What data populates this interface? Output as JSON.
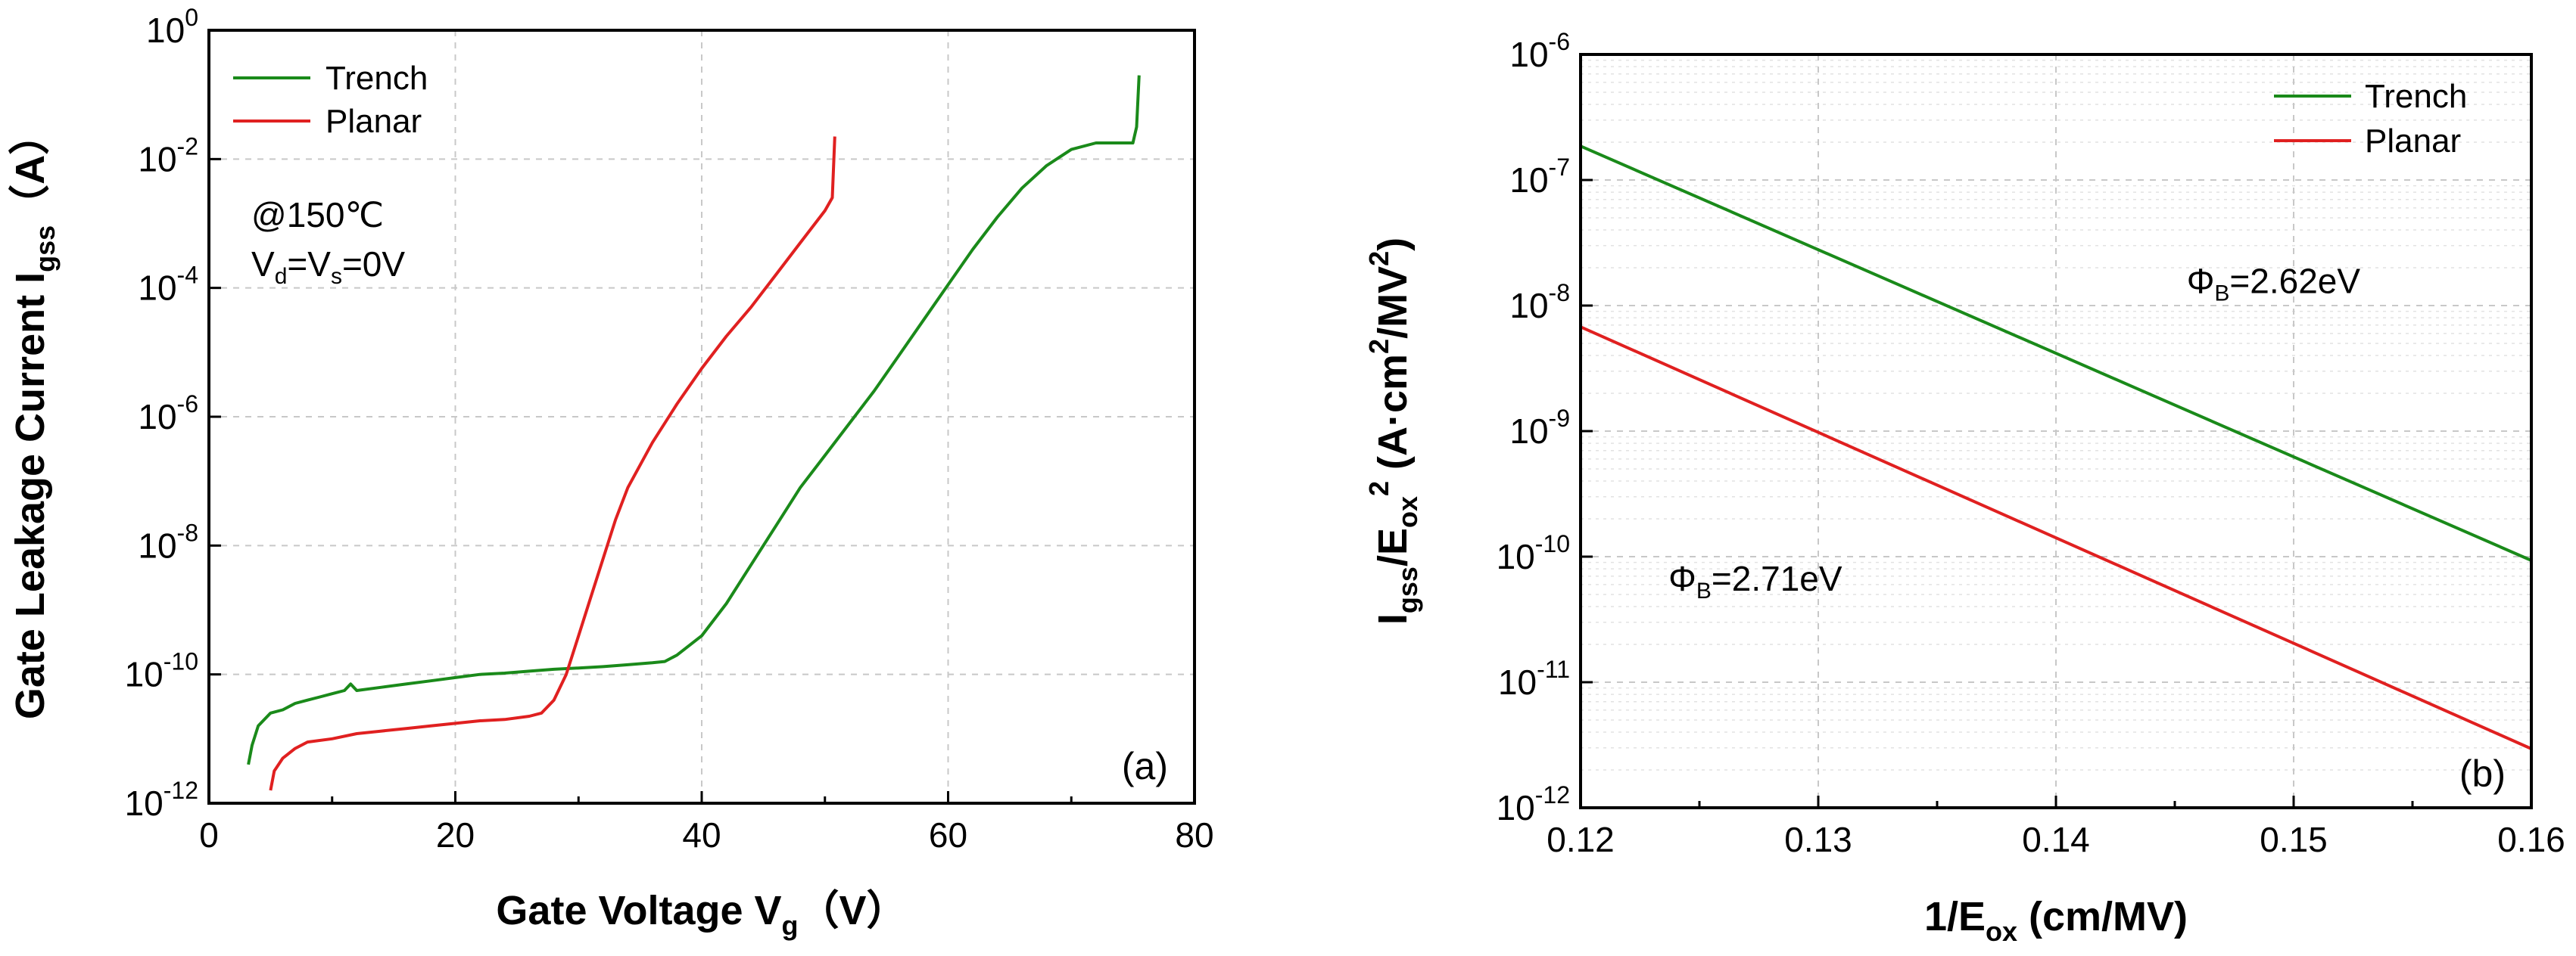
{
  "chart_data": [
    {
      "type": "line",
      "panel_label": "(a)",
      "xlabel": "Gate Voltage V",
      "xlabel_sub": "g",
      "xlabel_unit": "（V）",
      "ylabel": "Gate Leakage Current I",
      "ylabel_sub": "gss",
      "ylabel_unit": "（A）",
      "xlim": [
        0,
        80
      ],
      "x_ticks": [
        "0",
        "20",
        "40",
        "60",
        "80"
      ],
      "ylim_log10": [
        -12,
        0
      ],
      "y_scale": "log",
      "y_tick_exponents": [
        "-12",
        "-10",
        "-8",
        "-6",
        "-4",
        "-2",
        "0"
      ],
      "legend_position": "top-left",
      "annotation_line1": "@150℃",
      "annotation_line2": {
        "v1": "V",
        "v1_sub": "d",
        "eq1": "=",
        "v2": "V",
        "v2_sub": "s",
        "eq2": "=0V"
      },
      "series": [
        {
          "name": "Trench",
          "color": "#1a8a1a",
          "x": [
            3.2,
            3.5,
            4,
            5,
            6,
            7,
            8,
            9,
            10,
            11,
            11.5,
            12,
            14,
            16,
            18,
            20,
            22,
            24,
            26,
            28,
            30,
            32,
            34,
            36,
            37,
            38,
            39,
            40,
            42,
            44,
            46,
            48,
            50,
            52,
            54,
            56,
            58,
            60,
            62,
            64,
            66,
            68,
            70,
            72,
            74,
            75,
            75.3,
            75.5
          ],
          "log10_y": [
            -11.4,
            -11.1,
            -10.8,
            -10.6,
            -10.55,
            -10.45,
            -10.4,
            -10.35,
            -10.3,
            -10.25,
            -10.15,
            -10.25,
            -10.2,
            -10.15,
            -10.1,
            -10.05,
            -10.0,
            -9.98,
            -9.95,
            -9.92,
            -9.9,
            -9.88,
            -9.85,
            -9.82,
            -9.8,
            -9.7,
            -9.55,
            -9.4,
            -8.9,
            -8.3,
            -7.7,
            -7.1,
            -6.6,
            -6.1,
            -5.6,
            -5.05,
            -4.5,
            -3.95,
            -3.4,
            -2.9,
            -2.45,
            -2.1,
            -1.85,
            -1.75,
            -1.75,
            -1.75,
            -1.5,
            -0.7
          ]
        },
        {
          "name": "Planar",
          "color": "#e02020",
          "x": [
            5,
            5.3,
            6,
            7,
            8,
            10,
            12,
            14,
            16,
            18,
            20,
            22,
            24,
            26,
            27,
            28,
            29,
            30,
            31,
            32,
            33,
            34,
            36,
            38,
            40,
            42,
            44,
            46,
            48,
            50,
            50.6,
            50.8
          ],
          "log10_y": [
            -11.8,
            -11.5,
            -11.3,
            -11.15,
            -11.05,
            -11.0,
            -10.92,
            -10.88,
            -10.84,
            -10.8,
            -10.76,
            -10.72,
            -10.7,
            -10.65,
            -10.6,
            -10.4,
            -10.0,
            -9.4,
            -8.8,
            -8.2,
            -7.6,
            -7.1,
            -6.4,
            -5.8,
            -5.25,
            -4.75,
            -4.3,
            -3.8,
            -3.3,
            -2.8,
            -2.6,
            -1.65
          ]
        }
      ]
    },
    {
      "type": "line",
      "panel_label": "(b)",
      "xlabel": "1/E",
      "xlabel_sub": "ox",
      "xlabel_unit": " (cm/MV)",
      "ylabel_parts": {
        "p1": "I",
        "p1_sub": "gss",
        "p2": "/E",
        "p2_sub": "ox",
        "p2_sup": "2",
        "p3": " (A·cm",
        "p3_sup": "2",
        "p4": "/MV",
        "p4_sup": "2",
        "p5": ")"
      },
      "xlim": [
        0.12,
        0.16
      ],
      "x_ticks": [
        "0.12",
        "0.13",
        "0.14",
        "0.15",
        "0.16"
      ],
      "ylim_log10": [
        -12,
        -6
      ],
      "y_scale": "log",
      "y_tick_exponents": [
        "-12",
        "-11",
        "-10",
        "-9",
        "-8",
        "-7",
        "-6"
      ],
      "legend_position": "top-right",
      "series": [
        {
          "name": "Trench",
          "color": "#1a8a1a",
          "x": [
            0.12,
            0.16
          ],
          "log10_y": [
            -6.73,
            -10.03
          ],
          "label": "Φ",
          "label_sub": "B",
          "label_rest": "=2.62eV",
          "label_at": [
            0.1455,
            -7.9
          ]
        },
        {
          "name": "Planar",
          "color": "#e02020",
          "x": [
            0.12,
            0.16
          ],
          "log10_y": [
            -8.17,
            -11.53
          ],
          "label": "Φ",
          "label_sub": "B",
          "label_rest": "=2.71eV",
          "label_at": [
            0.1237,
            -10.27
          ]
        }
      ]
    }
  ]
}
